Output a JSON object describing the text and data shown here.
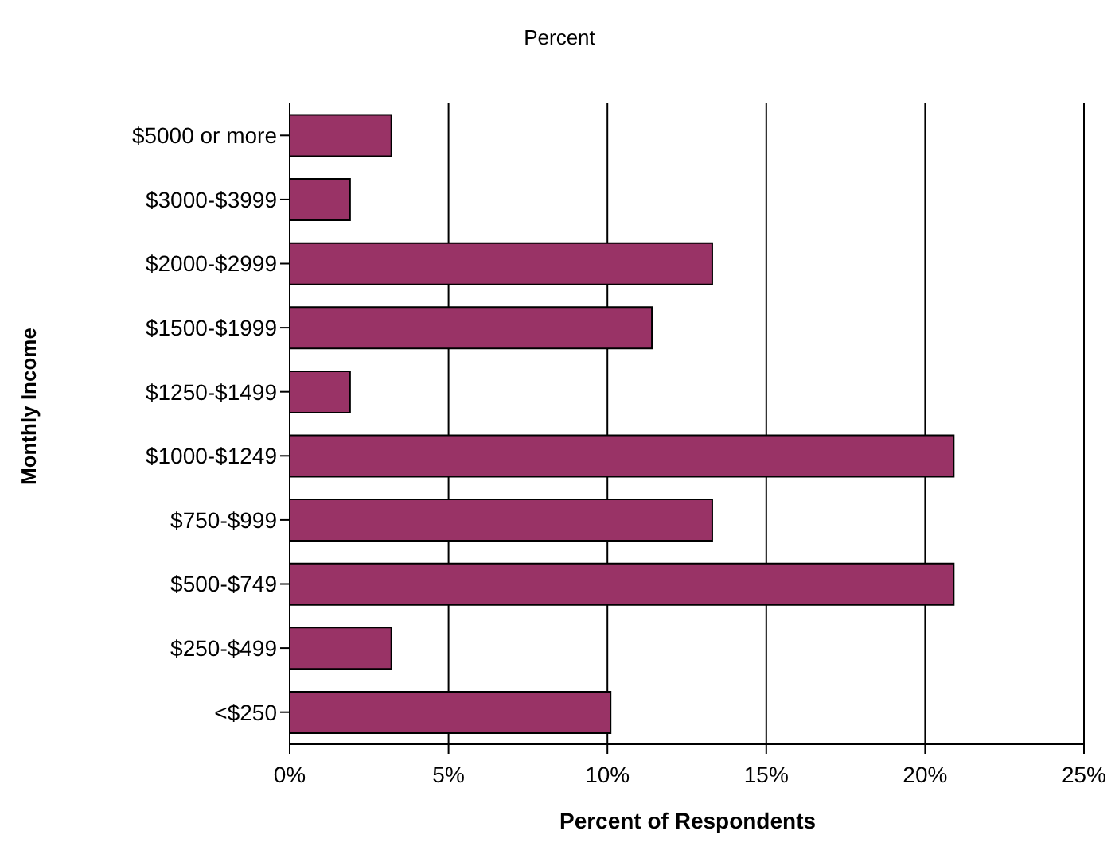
{
  "chart_data": {
    "type": "bar",
    "orientation": "horizontal",
    "title": "Percent",
    "xlabel": "Percent of Respondents",
    "ylabel": "Monthly Income",
    "categories": [
      "$5000 or more",
      "$3000-$3999",
      "$2000-$2999",
      "$1500-$1999",
      "$1250-$1499",
      "$1000-$1249",
      "$750-$999",
      "$500-$749",
      "$250-$499",
      "<$250"
    ],
    "values": [
      3.2,
      1.9,
      13.3,
      11.4,
      1.9,
      20.9,
      13.3,
      20.9,
      3.2,
      10.1
    ],
    "color": "#993366",
    "xlim": [
      0,
      25
    ],
    "xticks": [
      {
        "value": 0,
        "label": "0%"
      },
      {
        "value": 5,
        "label": "5%"
      },
      {
        "value": 10,
        "label": "10%"
      },
      {
        "value": 15,
        "label": "15%"
      },
      {
        "value": 20,
        "label": "20%"
      },
      {
        "value": 25,
        "label": "25%"
      }
    ],
    "grid": "x"
  }
}
